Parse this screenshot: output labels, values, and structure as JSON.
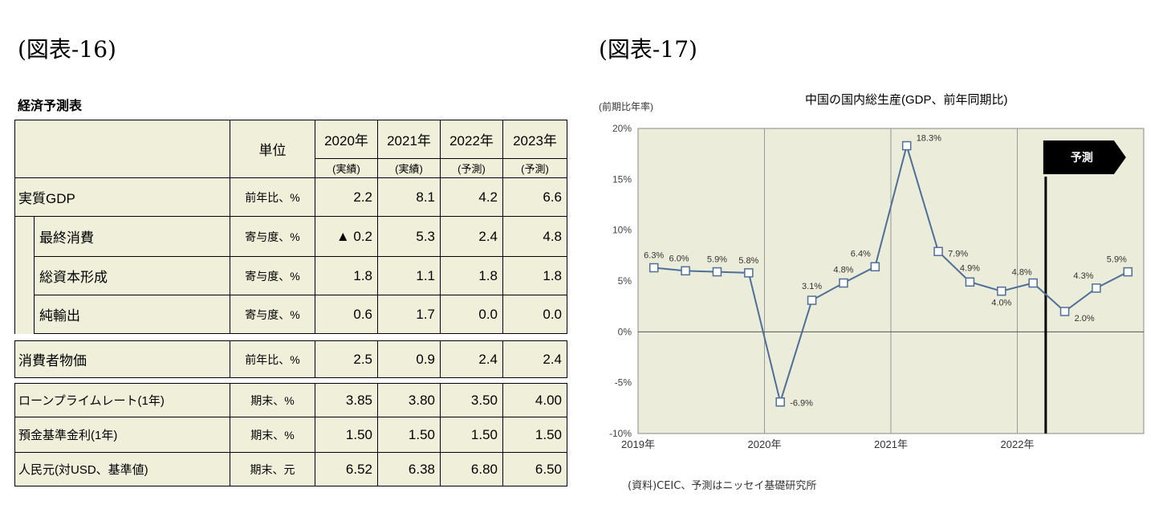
{
  "left_figure_title": "(図表-16)",
  "right_figure_title": "(図表-17)",
  "table": {
    "caption": "経済予測表",
    "unit_header": "単位",
    "years": [
      "2020年",
      "2021年",
      "2022年",
      "2023年"
    ],
    "statuses": [
      "(実績)",
      "(実績)",
      "(予測)",
      "(予測)"
    ],
    "rows": [
      {
        "label": "実質GDP",
        "unit": "前年比、%",
        "values": [
          "2.2",
          "8.1",
          "4.2",
          "6.6"
        ]
      },
      {
        "label": "最終消費",
        "unit": "寄与度、%",
        "values": [
          "▲ 0.2",
          "5.3",
          "2.4",
          "4.8"
        ]
      },
      {
        "label": "総資本形成",
        "unit": "寄与度、%",
        "values": [
          "1.8",
          "1.1",
          "1.8",
          "1.8"
        ]
      },
      {
        "label": "純輸出",
        "unit": "寄与度、%",
        "values": [
          "0.6",
          "1.7",
          "0.0",
          "0.0"
        ]
      }
    ],
    "cpi_row": {
      "label": "消費者物価",
      "unit": "前年比、%",
      "values": [
        "2.5",
        "0.9",
        "2.4",
        "2.4"
      ]
    },
    "rate_rows": [
      {
        "label": "ローンプライムレート(1年)",
        "unit": "期末、%",
        "values": [
          "3.85",
          "3.80",
          "3.50",
          "4.00"
        ]
      },
      {
        "label": "預金基準金利(1年)",
        "unit": "期末、%",
        "values": [
          "1.50",
          "1.50",
          "1.50",
          "1.50"
        ]
      },
      {
        "label": "人民元(対USD、基準値)",
        "unit": "期末、元",
        "values": [
          "6.52",
          "6.38",
          "6.80",
          "6.50"
        ]
      }
    ]
  },
  "chart_data": {
    "type": "line",
    "title": "中国の国内総生産(GDP、前年同期比)",
    "ylabel": "(前期比年率)",
    "ylim": [
      -10,
      20
    ],
    "y_ticks": [
      "20%",
      "15%",
      "10%",
      "5%",
      "0%",
      "-5%",
      "-10%"
    ],
    "x_tick_labels": [
      "2019年",
      "2020年",
      "2021年",
      "2022年"
    ],
    "x": [
      "2019Q1",
      "2019Q2",
      "2019Q3",
      "2019Q4",
      "2020Q1",
      "2020Q2",
      "2020Q3",
      "2020Q4",
      "2021Q1",
      "2021Q2",
      "2021Q3",
      "2021Q4",
      "2022Q1",
      "2022Q2",
      "2022Q3",
      "2022Q4"
    ],
    "values": [
      6.3,
      6.0,
      5.9,
      5.8,
      -6.9,
      3.1,
      4.8,
      6.4,
      18.3,
      7.9,
      4.9,
      4.0,
      4.8,
      2.0,
      4.3,
      5.9
    ],
    "data_labels": [
      "6.3%",
      "6.0%",
      "5.9%",
      "5.8%",
      "-6.9%",
      "3.1%",
      "4.8%",
      "6.4%",
      "18.3%",
      "7.9%",
      "4.9%",
      "4.0%",
      "4.8%",
      "2.0%",
      "4.3%",
      "5.9%"
    ],
    "forecast_label": "予測",
    "forecast_starts_after": "2022Q1",
    "grid": true,
    "source": "(資料)CEIC、予測はニッセイ基礎研究所",
    "colors": {
      "line": "#4f6f96",
      "plot_bg": "#ebecd9",
      "marker_fill": "#ffffff",
      "forecast_bar": "#000000"
    }
  }
}
